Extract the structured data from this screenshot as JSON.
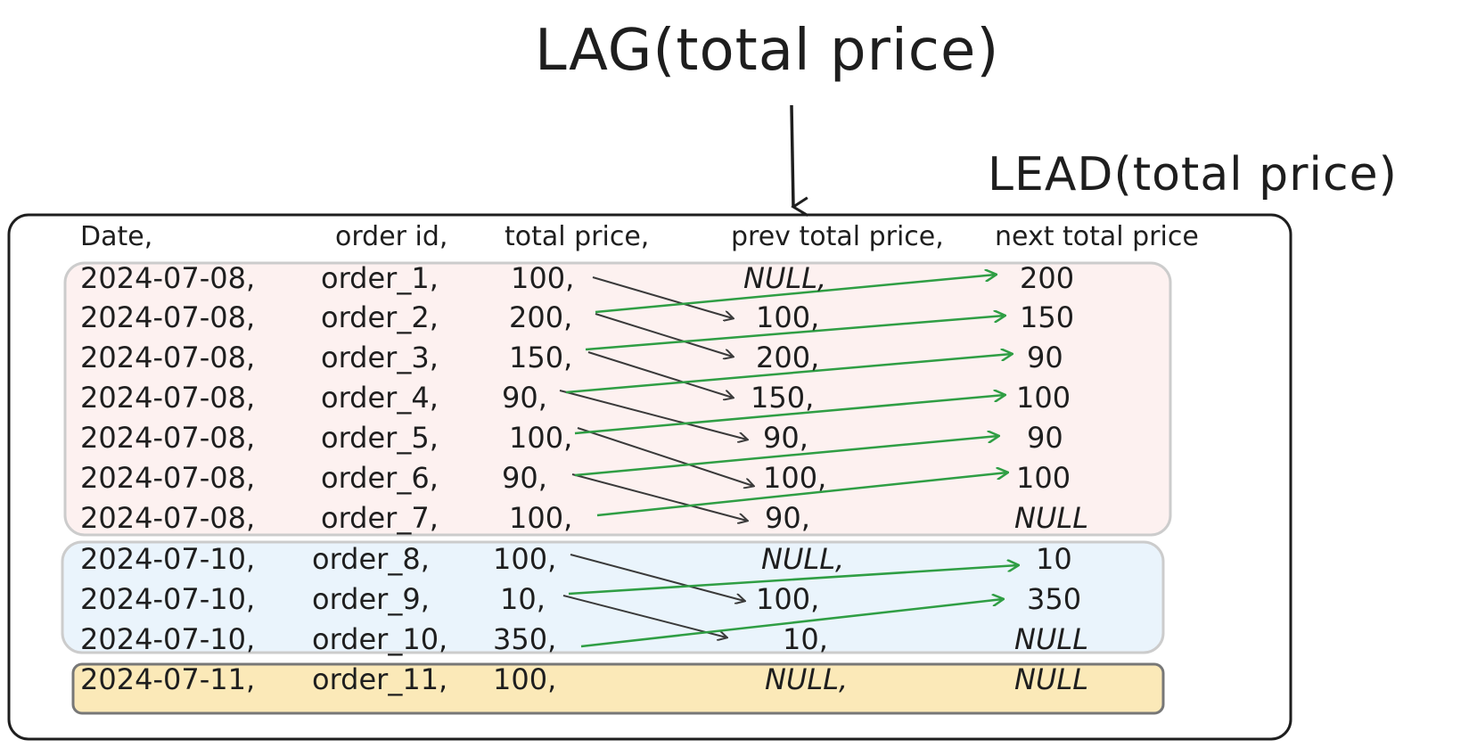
{
  "lag_title": "LAG(total price)",
  "lead_title": "LEAD(total price)",
  "headers": {
    "date": "Date,",
    "order_id": "order id,",
    "total_price": "total price,",
    "prev_total_price": "prev total price,",
    "next_total_price": "next total price"
  },
  "groups": [
    {
      "date": "2024-07-08",
      "color": "#fdf1f0",
      "border": "#cccccc"
    },
    {
      "date": "2024-07-10",
      "color": "#eaf4fc",
      "border": "#cccccc"
    },
    {
      "date": "2024-07-11",
      "color": "#fbe9b8",
      "border": "#777777"
    }
  ],
  "colors": {
    "lag_arrow": "#3a3a3a",
    "lead_arrow": "#2f9e44",
    "stroke": "#1e1e1e"
  },
  "rows": [
    {
      "date": "2024-07-08,",
      "order": "order_1,",
      "price": "100,",
      "prev": "NULL,",
      "next": "200"
    },
    {
      "date": "2024-07-08,",
      "order": "order_2,",
      "price": "200,",
      "prev": "100,",
      "next": "150"
    },
    {
      "date": "2024-07-08,",
      "order": "order_3,",
      "price": "150,",
      "prev": "200,",
      "next": "90"
    },
    {
      "date": "2024-07-08,",
      "order": "order_4,",
      "price": "90,",
      "prev": "150,",
      "next": "100"
    },
    {
      "date": "2024-07-08,",
      "order": "order_5,",
      "price": "100,",
      "prev": "90,",
      "next": "90"
    },
    {
      "date": "2024-07-08,",
      "order": "order_6,",
      "price": "90,",
      "prev": "100,",
      "next": "100"
    },
    {
      "date": "2024-07-08,",
      "order": "order_7,",
      "price": "100,",
      "prev": "90,",
      "next": "NULL"
    },
    {
      "date": "2024-07-10,",
      "order": "order_8,",
      "price": "100,",
      "prev": "NULL,",
      "next": "10"
    },
    {
      "date": "2024-07-10,",
      "order": "order_9,",
      "price": "10,",
      "prev": "100,",
      "next": "350"
    },
    {
      "date": "2024-07-10,",
      "order": "order_10,",
      "price": "350,",
      "prev": "10,",
      "next": "NULL"
    },
    {
      "date": "2024-07-11,",
      "order": "order_11,",
      "price": "100,",
      "prev": "NULL,",
      "next": "NULL"
    }
  ]
}
